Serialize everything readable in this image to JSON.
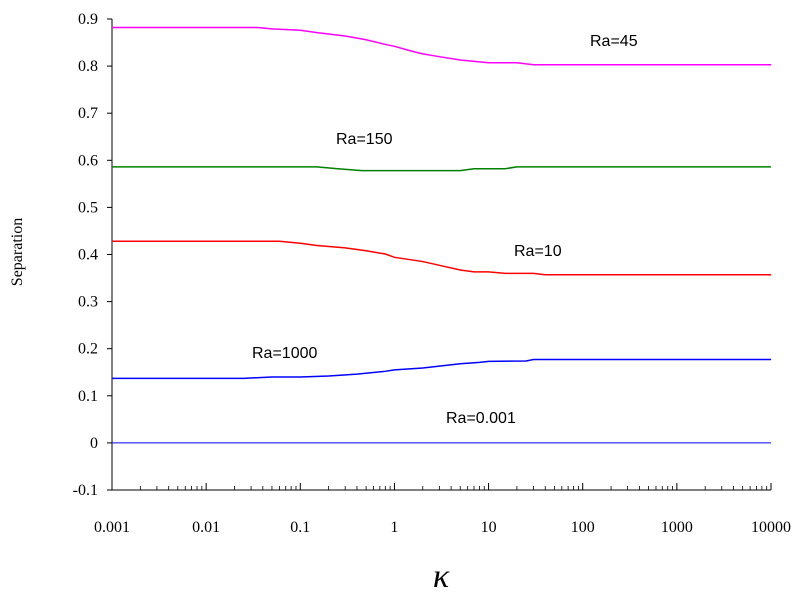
{
  "chart_data": {
    "type": "line",
    "title": "",
    "xlabel": "κ",
    "ylabel": "Separation",
    "x_scale": "log",
    "xlim": [
      0.001,
      10000
    ],
    "ylim": [
      -0.1,
      0.9
    ],
    "grid": false,
    "x_ticks": [
      "0.001",
      "0.01",
      "0.1",
      "1",
      "10",
      "100",
      "1000",
      "10000"
    ],
    "y_ticks": [
      "-0.1",
      "0",
      "0.1",
      "0.2",
      "0.3",
      "0.4",
      "0.5",
      "0.6",
      "0.7",
      "0.8",
      "0.9"
    ],
    "series": [
      {
        "name": "Ra=45",
        "color": "#ff00ff",
        "x": [
          0.001,
          0.035,
          0.05,
          0.1,
          0.15,
          0.3,
          0.5,
          0.8,
          1,
          1.5,
          2,
          3,
          5,
          8,
          10,
          20,
          30,
          100,
          1000,
          10000
        ],
        "y": [
          0.882,
          0.882,
          0.879,
          0.876,
          0.871,
          0.864,
          0.856,
          0.846,
          0.842,
          0.832,
          0.826,
          0.82,
          0.813,
          0.809,
          0.807,
          0.807,
          0.803,
          0.803,
          0.803,
          0.803
        ]
      },
      {
        "name": "Ra=150",
        "color": "#008000",
        "x": [
          0.001,
          0.15,
          0.25,
          0.45,
          1,
          5,
          7,
          15,
          20,
          100,
          1000,
          10000
        ],
        "y": [
          0.586,
          0.586,
          0.582,
          0.578,
          0.578,
          0.578,
          0.582,
          0.582,
          0.586,
          0.586,
          0.586,
          0.586
        ]
      },
      {
        "name": "Ra=10",
        "color": "#ff0000",
        "x": [
          0.001,
          0.06,
          0.1,
          0.15,
          0.3,
          0.5,
          0.8,
          1,
          2,
          3,
          5,
          7,
          10,
          15,
          30,
          40,
          100,
          1000,
          10000
        ],
        "y": [
          0.428,
          0.428,
          0.424,
          0.419,
          0.414,
          0.408,
          0.401,
          0.394,
          0.385,
          0.377,
          0.367,
          0.363,
          0.363,
          0.36,
          0.36,
          0.357,
          0.357,
          0.357,
          0.357
        ]
      },
      {
        "name": "Ra=1000",
        "color": "#0000ff",
        "x": [
          0.001,
          0.025,
          0.05,
          0.1,
          0.2,
          0.4,
          0.8,
          1,
          2,
          5,
          8,
          10,
          25,
          30,
          100,
          1000,
          10000
        ],
        "y": [
          0.137,
          0.137,
          0.14,
          0.14,
          0.142,
          0.146,
          0.152,
          0.155,
          0.159,
          0.168,
          0.171,
          0.173,
          0.174,
          0.177,
          0.177,
          0.177,
          0.177
        ]
      },
      {
        "name": "Ra=0.001",
        "color": "#0000ff",
        "x": [
          0.001,
          10000
        ],
        "y": [
          0,
          0
        ]
      }
    ]
  }
}
